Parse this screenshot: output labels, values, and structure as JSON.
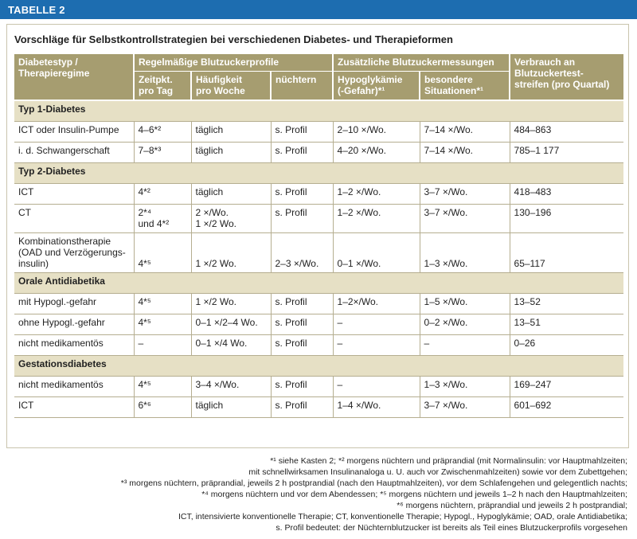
{
  "header": {
    "label": "TABELLE 2"
  },
  "title": "Vorschläge für Selbstkontrollstrategien bei verschiedenen Diabetes- und Therapieformen",
  "table": {
    "head": {
      "row1": [
        [
          "Diabetestyp /",
          "Therapieregime"
        ],
        "Regelmäßige Blutzuckerprofile",
        "Zusätzliche Blutzuckermessungen",
        [
          "Verbrauch an",
          "Blutzuckertest-",
          "streifen (pro Quartal)"
        ]
      ],
      "row2": [
        [
          "Zeitpkt.",
          "pro Tag"
        ],
        [
          "Häufigkeit",
          "pro Woche"
        ],
        "nüchtern",
        [
          "Hypoglykämie",
          "(-Gefahr)*¹"
        ],
        [
          "besondere",
          "Situationen*¹"
        ]
      ]
    },
    "rows": [
      {
        "section": "Typ 1-Diabetes"
      },
      {
        "cells": [
          "ICT oder Insulin-Pumpe",
          "4–6*²",
          "täglich",
          "s. Profil",
          "2–10 ×/Wo.",
          "7–14 ×/Wo.",
          "484–863"
        ]
      },
      {
        "cells": [
          "i. d. Schwangerschaft",
          "7–8*³",
          "täglich",
          "s. Profil",
          "4–20 ×/Wo.",
          "7–14 ×/Wo.",
          "785–1 177"
        ]
      },
      {
        "section": "Typ 2-Diabetes"
      },
      {
        "cells": [
          "ICT",
          "4*²",
          "täglich",
          "s. Profil",
          "1–2 ×/Wo.",
          "3–7 ×/Wo.",
          "418–483"
        ]
      },
      {
        "cells": [
          "CT",
          [
            "2*⁴",
            "und 4*²"
          ],
          [
            "2 ×/Wo.",
            "1 ×/2 Wo."
          ],
          "s. Profil",
          "1–2 ×/Wo.",
          "3–7 ×/Wo.",
          "130–196"
        ]
      },
      {
        "cells": [
          [
            "Kombinationstherapie",
            "(OAD und Verzögerungs-",
            "insulin)"
          ],
          "4*⁵",
          "1 ×/2 Wo.",
          "2–3 ×/Wo.",
          "0–1 ×/Wo.",
          "1–3 ×/Wo.",
          "65–117"
        ]
      },
      {
        "section": "Orale Antidiabetika"
      },
      {
        "cells": [
          "mit Hypogl.-gefahr",
          "4*⁵",
          "1 ×/2 Wo.",
          "s. Profil",
          "1–2×/Wo.",
          "1–5 ×/Wo.",
          "13–52"
        ]
      },
      {
        "cells": [
          "ohne Hypogl.-gefahr",
          "4*⁵",
          "0–1 ×/2–4 Wo.",
          "s. Profil",
          "–",
          "0–2 ×/Wo.",
          "13–51"
        ]
      },
      {
        "cells": [
          "nicht medikamentös",
          "–",
          "0–1 ×/4 Wo.",
          "s. Profil",
          "–",
          "–",
          "0–26"
        ]
      },
      {
        "section": "Gestationsdiabetes"
      },
      {
        "cells": [
          "nicht medikamentös",
          "4*⁵",
          "3–4 ×/Wo.",
          "s. Profil",
          "–",
          "1–3 ×/Wo.",
          "169–247"
        ]
      },
      {
        "cells": [
          "ICT",
          "6*⁶",
          "täglich",
          "s. Profil",
          "1–4 ×/Wo.",
          "3–7 ×/Wo.",
          "601–692"
        ]
      }
    ]
  },
  "footnotes": [
    "*¹ siehe Kasten 2; *² morgens nüchtern und präprandial (mit Normalinsulin: vor Hauptmahlzeiten;",
    "mit schnellwirksamen Insulinanaloga u. U. auch vor Zwischenmahlzeiten) sowie vor dem Zubettgehen;",
    "*³ morgens nüchtern, präprandial, jeweils 2 h postprandial (nach den Hauptmahlzeiten), vor dem Schlafengehen und gelegentlich nachts;",
    "*⁴ morgens nüchtern und vor dem Abendessen; *⁵ morgens  nüchtern und jeweils 1–2 h nach den Hauptmahlzeiten;",
    "*⁶ morgens nüchtern, präprandial und jeweils 2 h postprandial;",
    "ICT, intensivierte konventionelle Therapie; CT, konventionelle Therapie; Hypogl., Hypoglykämie; OAD, orale Antidiabetika;",
    "s. Profil bedeutet: der Nüchternblutzucker ist bereits als Teil eines Blutzuckerprofils vorgesehen"
  ]
}
